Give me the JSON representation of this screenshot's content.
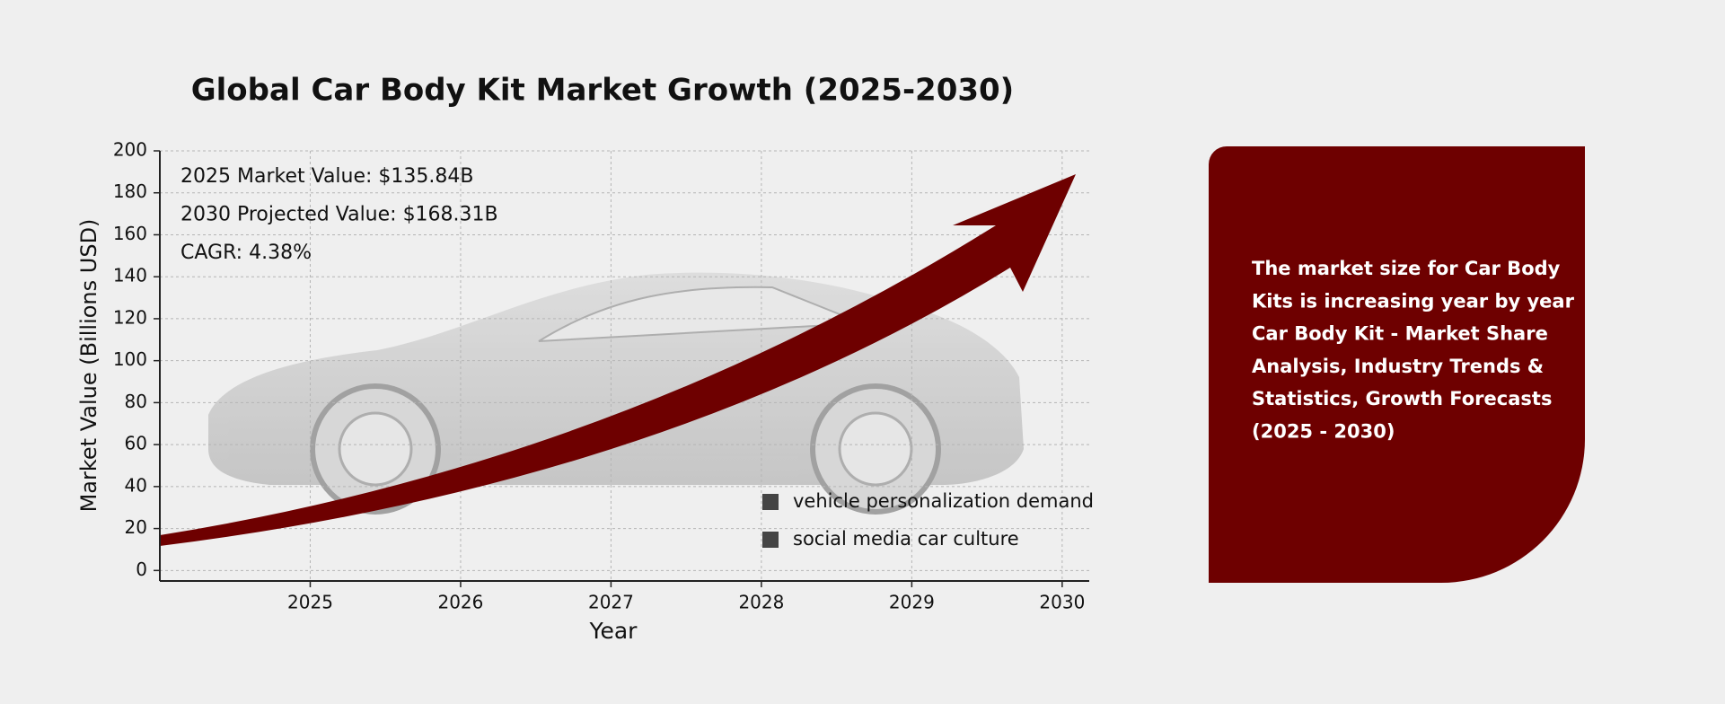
{
  "chart_data": {
    "type": "line",
    "title": "Global Car Body Kit Market Growth (2025-2030)",
    "x_label": "Year",
    "y_label": "Market Value (Billions USD)",
    "xlim": [
      2024,
      2030.18
    ],
    "xticks": [
      2025,
      2026,
      2027,
      2028,
      2029,
      2030
    ],
    "ylim": [
      -5,
      200
    ],
    "yticks": [
      0,
      20,
      40,
      60,
      80,
      100,
      120,
      140,
      160,
      180,
      200
    ],
    "grid": true,
    "annotations": [
      "2025 Market Value: $135.84B",
      "2030 Projected Value: $168.31B",
      "CAGR: 4.38%"
    ],
    "legend": [
      {
        "name": "vehicle personalization demand",
        "color": "#444444"
      },
      {
        "name": "social media car culture",
        "color": "#444444"
      }
    ],
    "arrow_color": "#6e0000"
  },
  "panel": {
    "color": "#6e0000",
    "lines": [
      "The market size for Car Body",
      "Kits is increasing year by year",
      "Car Body Kit - Market Share",
      "Analysis, Industry Trends &",
      "Statistics, Growth Forecasts",
      "(2025 - 2030)"
    ]
  }
}
